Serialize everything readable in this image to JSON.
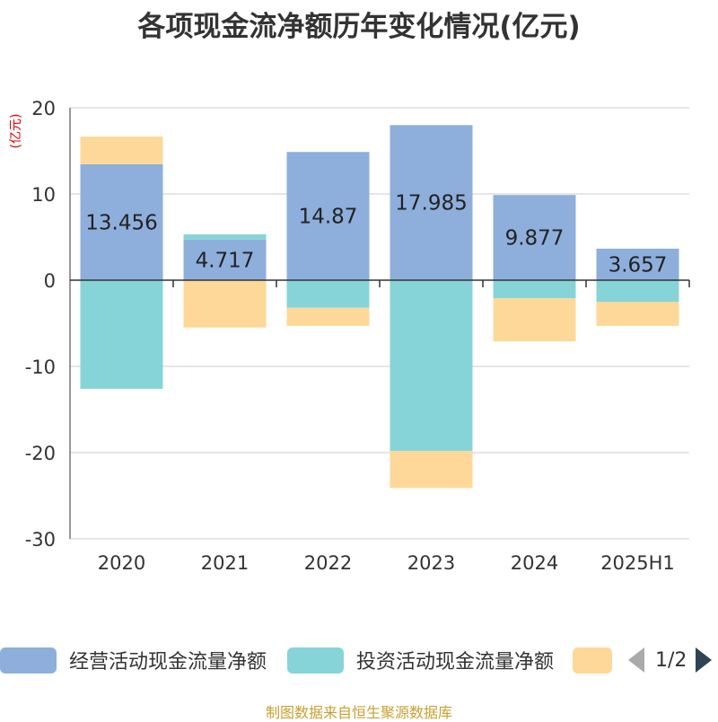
{
  "title": "各项现金流净额历年变化情况(亿元)",
  "source_note": "制图数据来自恒生聚源数据库",
  "pager": {
    "text": "1/2"
  },
  "colors": {
    "series_1": "#8eafdc",
    "series_2": "#86d4d8",
    "series_3": "#fdd899",
    "axis": "#333333",
    "grid": "#cccccc",
    "unit": "#e00000"
  },
  "legend": [
    {
      "label": "经营活动现金流量净额"
    },
    {
      "label": "投资活动现金流量净额"
    },
    {
      "label": ""
    }
  ],
  "chart_data": {
    "type": "bar",
    "stacked": true,
    "categories": [
      "2020",
      "2021",
      "2022",
      "2023",
      "2024",
      "2025H1"
    ],
    "series": [
      {
        "name": "经营活动现金流量净额",
        "values": [
          13.456,
          4.717,
          14.87,
          17.985,
          9.877,
          3.657
        ],
        "labels": [
          "13.456",
          "4.717",
          "14.87",
          "17.985",
          "9.877",
          "3.657"
        ]
      },
      {
        "name": "投资活动现金流量净额",
        "values": [
          -12.6,
          0.6,
          -3.2,
          -19.8,
          -2.1,
          -2.5
        ]
      },
      {
        "name": "",
        "values": [
          3.2,
          -5.5,
          -2.1,
          -4.3,
          -5.0,
          -2.8
        ]
      }
    ],
    "ylabel": "(亿元)",
    "ylim": [
      -30,
      20
    ],
    "yticks": [
      20,
      10,
      0,
      -10,
      -20,
      -30
    ],
    "grid": true,
    "legend_position": "bottom"
  }
}
